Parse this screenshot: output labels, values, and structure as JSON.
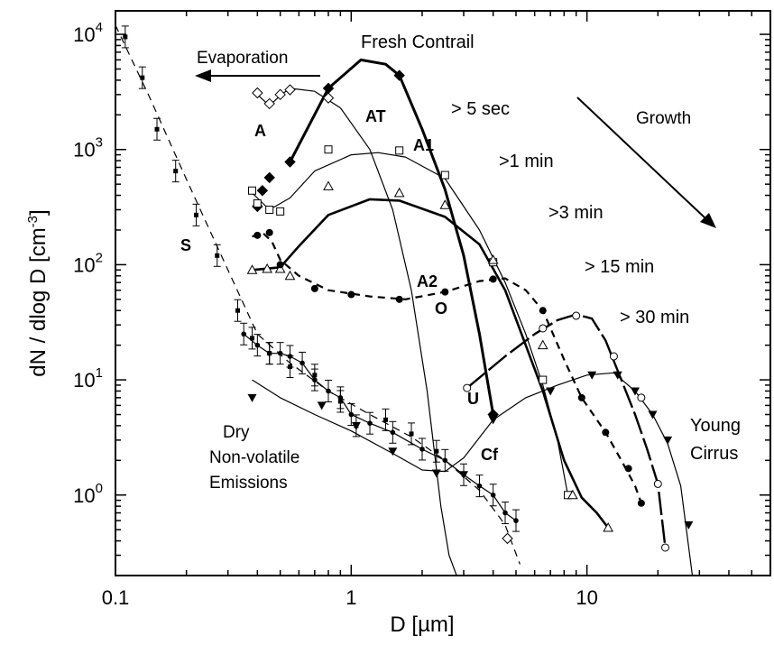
{
  "chart_data": {
    "type": "line",
    "title": "",
    "xlabel": "D [µm]",
    "ylabel_main": "dN / dlog D [cm",
    "ylabel_sup": "-3",
    "ylabel_end": "]",
    "x_scale": "log",
    "y_scale": "log",
    "xlim": [
      0.1,
      60
    ],
    "ylim": [
      0.2,
      16000
    ],
    "x_ticks": [
      {
        "value": 0.1,
        "label": "0.1"
      },
      {
        "value": 1,
        "label": "1"
      },
      {
        "value": 10,
        "label": "10"
      }
    ],
    "y_ticks": [
      {
        "value": 1,
        "base": "10",
        "exp": "0"
      },
      {
        "value": 10,
        "base": "10",
        "exp": "1"
      },
      {
        "value": 100,
        "base": "10",
        "exp": "2"
      },
      {
        "value": 1000,
        "base": "10",
        "exp": "3"
      },
      {
        "value": 10000,
        "base": "10",
        "exp": "4"
      }
    ],
    "series": [
      {
        "name": "S",
        "line": "dashed",
        "marker": "square_small",
        "width": 1.2,
        "points": [
          [
            0.11,
            9500
          ],
          [
            0.13,
            4200
          ],
          [
            0.15,
            1500
          ],
          [
            0.18,
            650
          ],
          [
            0.22,
            270
          ],
          [
            0.27,
            120
          ],
          [
            0.33,
            40
          ],
          [
            0.38,
            23
          ],
          [
            0.45,
            17
          ],
          [
            0.55,
            13
          ],
          [
            0.7,
            11
          ],
          [
            0.9,
            6.5
          ],
          [
            1.05,
            4
          ],
          [
            1.4,
            4.5
          ],
          [
            1.8,
            3.4
          ],
          [
            2.3,
            2.4
          ]
        ],
        "curve": [
          [
            0.1,
            12000
          ],
          [
            0.14,
            2800
          ],
          [
            0.2,
            550
          ],
          [
            0.3,
            90
          ],
          [
            0.4,
            25
          ],
          [
            0.55,
            14
          ],
          [
            0.8,
            8
          ],
          [
            1.2,
            5
          ],
          [
            1.8,
            3.2
          ],
          [
            2.5,
            2
          ],
          [
            3.5,
            1.1
          ],
          [
            4.5,
            0.55
          ],
          [
            5.2,
            0.25
          ]
        ]
      },
      {
        "name": "Dry",
        "line": "dotted-solid",
        "marker": "circle_small",
        "width": 1.2,
        "points": [
          [
            0.35,
            25
          ],
          [
            0.4,
            20
          ],
          [
            0.45,
            17
          ],
          [
            0.5,
            17
          ],
          [
            0.55,
            16
          ],
          [
            0.62,
            14
          ],
          [
            0.7,
            10
          ],
          [
            0.8,
            8
          ],
          [
            0.9,
            7
          ],
          [
            1.0,
            5
          ],
          [
            1.2,
            4.2
          ],
          [
            1.5,
            3.5
          ],
          [
            2.0,
            2.5
          ],
          [
            2.5,
            2
          ],
          [
            3.0,
            1.5
          ],
          [
            3.5,
            1.2
          ],
          [
            4.0,
            1
          ],
          [
            4.5,
            0.7
          ],
          [
            5.0,
            0.6
          ]
        ]
      },
      {
        "name": "A",
        "line": "solid",
        "marker": "diamond_open",
        "width": 1.2,
        "points": [
          [
            0.4,
            3100
          ],
          [
            0.45,
            2500
          ],
          [
            0.5,
            3000
          ],
          [
            0.55,
            3300
          ],
          [
            0.8,
            2800
          ],
          [
            4.6,
            0.42
          ]
        ],
        "curve": [
          [
            0.4,
            3000
          ],
          [
            0.45,
            2400
          ],
          [
            0.5,
            2950
          ],
          [
            0.55,
            3400
          ],
          [
            0.7,
            3200
          ],
          [
            0.9,
            2300
          ],
          [
            1.2,
            1000
          ],
          [
            1.5,
            300
          ],
          [
            1.8,
            60
          ],
          [
            2.1,
            8
          ],
          [
            2.4,
            0.8
          ],
          [
            2.6,
            0.3
          ],
          [
            2.8,
            0.2
          ]
        ]
      },
      {
        "name": "AT",
        "line": "solid",
        "marker": "diamond_filled",
        "width": 3,
        "points": [
          [
            0.4,
            320
          ],
          [
            0.42,
            440
          ],
          [
            0.45,
            570
          ],
          [
            0.55,
            780
          ],
          [
            0.8,
            3400
          ],
          [
            1.6,
            4400
          ],
          [
            4.0,
            5
          ]
        ],
        "curve": [
          [
            0.55,
            780
          ],
          [
            0.8,
            3400
          ],
          [
            1.1,
            6000
          ],
          [
            1.4,
            5500
          ],
          [
            1.6,
            4400
          ],
          [
            2.0,
            1500
          ],
          [
            2.5,
            450
          ],
          [
            3.0,
            120
          ],
          [
            3.5,
            25
          ],
          [
            4.0,
            5
          ]
        ]
      },
      {
        "name": "A1",
        "line": "solid",
        "marker": "square_open",
        "width": 1.2,
        "points": [
          [
            0.38,
            440
          ],
          [
            0.4,
            340
          ],
          [
            0.45,
            300
          ],
          [
            0.5,
            290
          ],
          [
            0.8,
            1000
          ],
          [
            1.6,
            980
          ],
          [
            2.5,
            600
          ],
          [
            4.0,
            105
          ],
          [
            6.5,
            10
          ],
          [
            8.3,
            1
          ]
        ],
        "curve": [
          [
            0.38,
            420
          ],
          [
            0.45,
            300
          ],
          [
            0.55,
            380
          ],
          [
            0.7,
            650
          ],
          [
            1.0,
            900
          ],
          [
            1.3,
            940
          ],
          [
            1.7,
            860
          ],
          [
            2.5,
            560
          ],
          [
            3.5,
            200
          ],
          [
            4.5,
            70
          ],
          [
            5.5,
            25
          ],
          [
            6.5,
            9
          ],
          [
            7.5,
            3
          ],
          [
            8.3,
            1
          ]
        ]
      },
      {
        "name": "A2",
        "line": "solid",
        "marker": "triangle_open",
        "width": 2.6,
        "points": [
          [
            0.38,
            90
          ],
          [
            0.44,
            92
          ],
          [
            0.5,
            92
          ],
          [
            0.55,
            80
          ],
          [
            0.8,
            480
          ],
          [
            1.6,
            420
          ],
          [
            2.5,
            330
          ],
          [
            4.0,
            110
          ],
          [
            6.5,
            20
          ],
          [
            8.7,
            1
          ],
          [
            12.3,
            0.52
          ]
        ],
        "curve": [
          [
            0.38,
            90
          ],
          [
            0.5,
            95
          ],
          [
            0.6,
            145
          ],
          [
            0.8,
            270
          ],
          [
            1.2,
            370
          ],
          [
            1.6,
            360
          ],
          [
            2.5,
            260
          ],
          [
            3.5,
            150
          ],
          [
            4.5,
            60
          ],
          [
            5.5,
            20
          ],
          [
            6.5,
            8
          ],
          [
            8.0,
            2
          ],
          [
            9.5,
            0.95
          ],
          [
            11,
            0.7
          ],
          [
            12.3,
            0.52
          ]
        ]
      },
      {
        "name": "O",
        "line": "dashed",
        "marker": "circle_filled",
        "width": 2.2,
        "points": [
          [
            0.4,
            180
          ],
          [
            0.45,
            190
          ],
          [
            0.5,
            100
          ],
          [
            0.7,
            62
          ],
          [
            1.0,
            55
          ],
          [
            1.6,
            50
          ],
          [
            2.5,
            58
          ],
          [
            4.0,
            75
          ],
          [
            6.5,
            40
          ],
          [
            9.5,
            7
          ],
          [
            12,
            3.5
          ],
          [
            15,
            1.7
          ],
          [
            17,
            0.85
          ]
        ],
        "curve": [
          [
            0.38,
            175
          ],
          [
            0.42,
            190
          ],
          [
            0.46,
            160
          ],
          [
            0.5,
            110
          ],
          [
            0.6,
            80
          ],
          [
            0.8,
            60
          ],
          [
            1.2,
            53
          ],
          [
            1.7,
            50
          ],
          [
            2.5,
            58
          ],
          [
            3.5,
            72
          ],
          [
            4.5,
            76
          ],
          [
            5.5,
            60
          ],
          [
            6.5,
            40
          ],
          [
            8,
            15
          ],
          [
            9.5,
            7
          ],
          [
            12,
            3.5
          ],
          [
            14,
            2
          ],
          [
            16,
            1.2
          ],
          [
            17,
            0.85
          ]
        ]
      },
      {
        "name": "U",
        "line": "solid-dashed",
        "marker": "circle_open",
        "width": 2.4,
        "points": [
          [
            3.1,
            8.5
          ],
          [
            6.5,
            28
          ],
          [
            9.0,
            36
          ],
          [
            13,
            16
          ],
          [
            17,
            7
          ],
          [
            20,
            1.25
          ],
          [
            21.5,
            0.35
          ]
        ],
        "curve": [
          [
            3.1,
            8.5
          ],
          [
            4.5,
            16
          ],
          [
            6,
            25
          ],
          [
            7.5,
            33
          ],
          [
            9,
            37
          ],
          [
            10.5,
            34
          ],
          [
            12,
            22
          ],
          [
            14,
            10
          ],
          [
            16,
            5
          ],
          [
            18,
            2.5
          ],
          [
            20,
            1.25
          ],
          [
            21.5,
            0.35
          ]
        ]
      },
      {
        "name": "Cf",
        "line": "solid",
        "marker": "triangle_filled",
        "width": 1.2,
        "points": [
          [
            0.38,
            7
          ],
          [
            0.75,
            6
          ],
          [
            1.05,
            4
          ],
          [
            1.5,
            2.4
          ],
          [
            2.3,
            1.55
          ],
          [
            3.0,
            1.5
          ],
          [
            4.0,
            4.5
          ],
          [
            7.0,
            8
          ],
          [
            10.5,
            11
          ],
          [
            13.5,
            11
          ],
          [
            16,
            8
          ],
          [
            19,
            5
          ],
          [
            22,
            3
          ],
          [
            27,
            0.55
          ]
        ],
        "curve": [
          [
            0.38,
            10
          ],
          [
            0.5,
            7
          ],
          [
            0.7,
            5
          ],
          [
            1.0,
            3.6
          ],
          [
            1.5,
            2.3
          ],
          [
            2.0,
            1.65
          ],
          [
            2.5,
            1.6
          ],
          [
            3.0,
            2.1
          ],
          [
            4.0,
            4.5
          ],
          [
            5.5,
            7
          ],
          [
            7.5,
            9
          ],
          [
            10,
            11
          ],
          [
            13,
            11.5
          ],
          [
            16,
            8
          ],
          [
            19,
            5
          ],
          [
            22,
            2.8
          ],
          [
            25,
            1.2
          ],
          [
            28,
            0.2
          ]
        ]
      }
    ],
    "annotations": {
      "title_text": "Fresh Contrail",
      "evaporation": "Evaporation",
      "growth": "Growth",
      "label_A": "A",
      "label_AT": "AT",
      "label_A1": "A1",
      "label_A2": "A2",
      "label_O": "O",
      "label_S": "S",
      "label_U": "U",
      "label_Cf": "Cf",
      "time_5s": "> 5 sec",
      "time_1m": ">1 min",
      "time_3m": ">3 min",
      "time_15m": "> 15 min",
      "time_30m": "> 30 min",
      "dry_1": "Dry",
      "dry_2": "Non-volatile",
      "dry_3": "Emissions",
      "young": "Young",
      "cirrus": "Cirrus"
    }
  }
}
